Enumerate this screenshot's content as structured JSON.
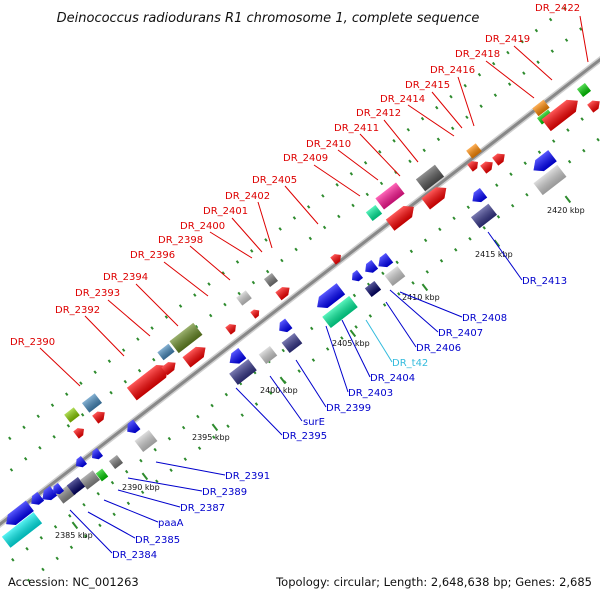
{
  "title": "Deinococcus radiodurans R1 chromosome 1, complete sequence",
  "footer": {
    "accession": "Accession: NC_001263",
    "summary": "Topology: circular; Length: 2,648,638 bp; Genes: 2,685"
  },
  "colors": {
    "forward_label": "#dd0000",
    "reverse_label": "#0000cc",
    "rna_label": "#33bbdd",
    "backbone": "#999999"
  },
  "position_ticks": [
    {
      "label": "2385 kbp",
      "kbp": 2385
    },
    {
      "label": "2390 kbp",
      "kbp": 2390
    },
    {
      "label": "2395 kbp",
      "kbp": 2395
    },
    {
      "label": "2400 kbp",
      "kbp": 2400
    },
    {
      "label": "2405 kbp",
      "kbp": 2405
    },
    {
      "label": "2410 kbp",
      "kbp": 2410
    },
    {
      "label": "2415 kbp",
      "kbp": 2415
    },
    {
      "label": "2420 kbp",
      "kbp": 2420
    }
  ],
  "forward_genes": [
    "DR_2390",
    "DR_2392",
    "DR_2393",
    "DR_2394",
    "DR_2396",
    "DR_2398",
    "DR_2400",
    "DR_2401",
    "DR_2402",
    "DR_2405",
    "DR_2409",
    "DR_2410",
    "DR_2411",
    "DR_2412",
    "DR_2414",
    "DR_2415",
    "DR_2416",
    "DR_2418",
    "DR_2419",
    "DR_2422"
  ],
  "reverse_genes": [
    "DR_2384",
    "DR_2385",
    "paaA",
    "DR_2387",
    "DR_2389",
    "DR_2391",
    "DR_2395",
    "surE",
    "DR_2399",
    "DR_2403",
    "DR_2404",
    "DR_t42",
    "DR_2406",
    "DR_2407",
    "DR_2408",
    "DR_2413"
  ]
}
